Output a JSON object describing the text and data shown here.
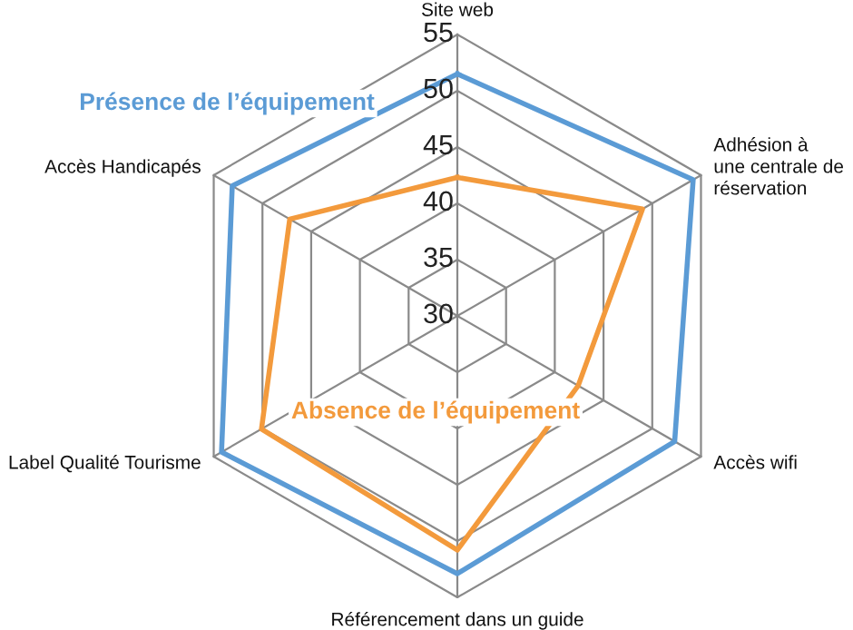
{
  "chart_data": {
    "type": "radar",
    "categories": [
      "Site web",
      "Adhésion à\nune centrale de\nréservation",
      "Accès wifi",
      "Référencement dans un guide",
      "Label Qualité Tourisme",
      "Accès Handicapés"
    ],
    "ylim": [
      30,
      55
    ],
    "yticks": [
      30,
      35,
      40,
      45,
      50,
      55
    ],
    "grid": true,
    "legend": false,
    "series": [
      {
        "name": "Présence de l’équipement",
        "color": "#5b9bd5",
        "values": [
          51.5,
          54.2,
          52.3,
          52.9,
          54.2,
          53.1
        ]
      },
      {
        "name": "Absence de l’équipement",
        "color": "#f39a3c",
        "values": [
          42.3,
          49,
          42.4,
          50.8,
          50.1,
          47.2
        ]
      }
    ]
  }
}
